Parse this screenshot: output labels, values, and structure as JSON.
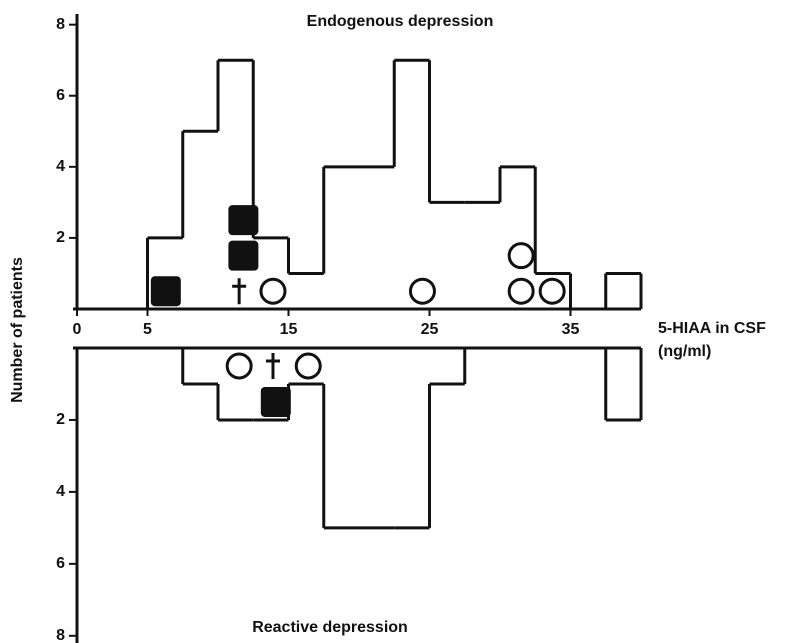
{
  "chart_data": [
    {
      "type": "histogram",
      "title": "Endogenous depression",
      "bins": [
        5,
        7.5,
        10,
        12.5,
        15,
        17.5,
        20,
        22.5,
        25,
        27.5,
        30,
        32.5,
        35,
        37.5,
        40
      ],
      "values": [
        2,
        5,
        7,
        2,
        1,
        4,
        4,
        7,
        3,
        3,
        4,
        1,
        0,
        1
      ],
      "xlim": [
        0,
        40
      ],
      "xticks": [
        0,
        5,
        15,
        25,
        35
      ],
      "xlabel": "5-HIAA in CSF",
      "xunit": "(ng/ml)",
      "ylabel": "Number of patients",
      "ylim": [
        0,
        8.3
      ],
      "yticks": [
        2,
        4,
        6,
        8
      ],
      "markers": [
        {
          "shape": "square",
          "x": 6.3,
          "y": 0.5
        },
        {
          "shape": "square",
          "x": 11.8,
          "y": 1.5
        },
        {
          "shape": "square",
          "x": 11.8,
          "y": 2.5
        },
        {
          "shape": "cross",
          "x": 11.5,
          "y": 0.5
        },
        {
          "shape": "circle",
          "x": 13.9,
          "y": 0.5
        },
        {
          "shape": "circle",
          "x": 24.5,
          "y": 0.5
        },
        {
          "shape": "circle",
          "x": 31.5,
          "y": 0.5
        },
        {
          "shape": "circle",
          "x": 31.5,
          "y": 1.5
        },
        {
          "shape": "circle",
          "x": 33.7,
          "y": 0.5
        }
      ]
    },
    {
      "type": "histogram",
      "title": "Reactive depression",
      "bins": [
        5,
        7.5,
        10,
        12.5,
        15,
        17.5,
        20,
        22.5,
        25,
        27.5,
        30,
        32.5,
        35,
        37.5,
        40
      ],
      "values": [
        0,
        1,
        2,
        2,
        1,
        5,
        5,
        5,
        1,
        0,
        0,
        0,
        0,
        2
      ],
      "ylim": [
        0,
        8.2
      ],
      "yticks": [
        2,
        4,
        6,
        8
      ],
      "markers": [
        {
          "shape": "circle",
          "x": 11.5,
          "y": 0.5
        },
        {
          "shape": "cross",
          "x": 13.9,
          "y": 0.5
        },
        {
          "shape": "circle",
          "x": 16.4,
          "y": 0.5
        },
        {
          "shape": "square",
          "x": 14.1,
          "y": 1.5
        }
      ]
    }
  ]
}
